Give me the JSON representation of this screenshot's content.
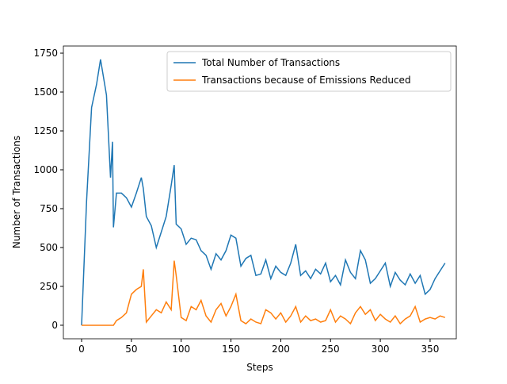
{
  "chart_data": {
    "type": "line",
    "xlabel": "Steps",
    "ylabel": "Number of Transactions",
    "x": [
      0,
      5,
      10,
      15,
      19,
      25,
      29,
      31,
      32,
      35,
      40,
      45,
      50,
      55,
      60,
      62,
      65,
      70,
      75,
      80,
      85,
      90,
      93,
      95,
      100,
      105,
      110,
      115,
      120,
      125,
      130,
      135,
      140,
      145,
      150,
      155,
      160,
      165,
      170,
      175,
      180,
      185,
      190,
      195,
      200,
      205,
      210,
      215,
      220,
      225,
      230,
      235,
      240,
      245,
      250,
      255,
      260,
      265,
      270,
      275,
      280,
      285,
      290,
      295,
      300,
      305,
      310,
      315,
      320,
      325,
      330,
      335,
      340,
      345,
      350,
      355,
      360,
      365
    ],
    "series": [
      {
        "name": "Total Number of Transactions",
        "color": "#1f77b4",
        "values": [
          0,
          800,
          1400,
          1550,
          1710,
          1480,
          950,
          1180,
          630,
          850,
          850,
          820,
          760,
          850,
          950,
          880,
          700,
          640,
          500,
          600,
          700,
          900,
          1030,
          650,
          620,
          520,
          560,
          550,
          480,
          450,
          360,
          460,
          420,
          480,
          580,
          560,
          380,
          430,
          450,
          320,
          330,
          420,
          300,
          380,
          340,
          320,
          400,
          520,
          320,
          350,
          300,
          360,
          330,
          400,
          280,
          320,
          260,
          420,
          340,
          300,
          480,
          420,
          270,
          300,
          350,
          400,
          250,
          340,
          290,
          260,
          330,
          270,
          320,
          200,
          230,
          300,
          350,
          400
        ]
      },
      {
        "name": "Transactions because of Emissions Reduced",
        "color": "#ff7f0e",
        "values": [
          0,
          0,
          0,
          0,
          0,
          0,
          0,
          0,
          0,
          30,
          50,
          80,
          200,
          230,
          250,
          360,
          20,
          60,
          100,
          80,
          150,
          100,
          415,
          320,
          50,
          30,
          120,
          100,
          160,
          60,
          20,
          100,
          140,
          60,
          120,
          200,
          30,
          10,
          40,
          20,
          10,
          100,
          80,
          40,
          80,
          20,
          60,
          120,
          20,
          60,
          30,
          40,
          20,
          30,
          100,
          20,
          60,
          40,
          10,
          80,
          120,
          70,
          100,
          30,
          70,
          40,
          20,
          60,
          10,
          40,
          60,
          120,
          20,
          40,
          50,
          40,
          60,
          50
        ]
      }
    ],
    "xlim": [
      -18.3,
      376.3
    ],
    "ylim": [
      -87,
      1796
    ],
    "xticks": [
      0,
      50,
      100,
      150,
      200,
      250,
      300,
      350
    ],
    "yticks": [
      0,
      250,
      500,
      750,
      1000,
      1250,
      1500,
      1750
    ],
    "legend": "upper right"
  }
}
